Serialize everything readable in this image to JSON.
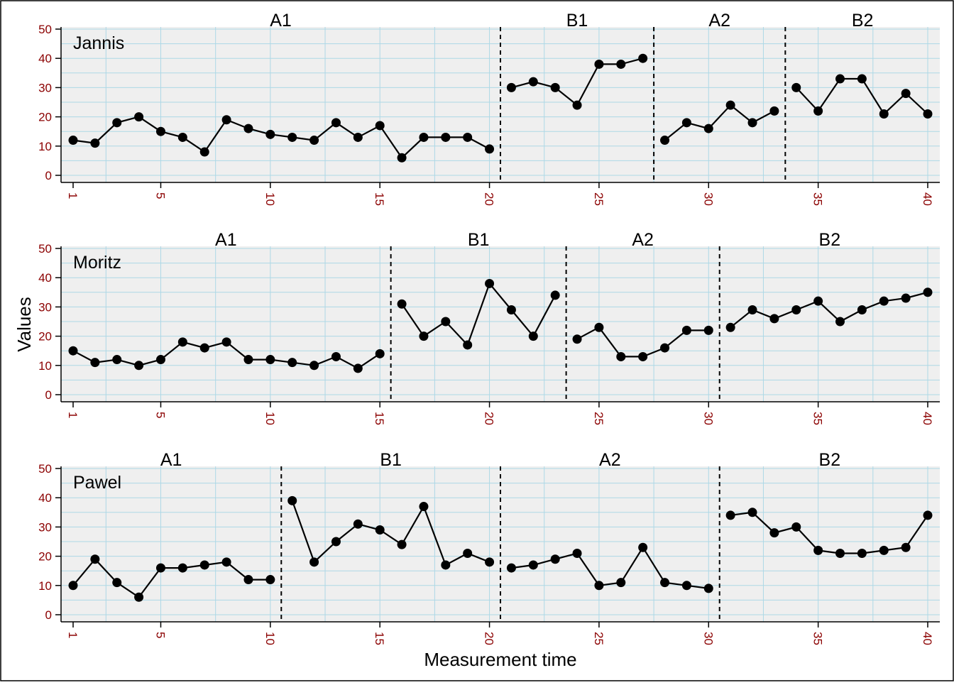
{
  "chart_data": {
    "type": "line",
    "xlabel": "Measurement time",
    "ylabel": "Values",
    "ylim": [
      0,
      50
    ],
    "xlim": [
      1,
      40
    ],
    "yticks": [
      "0",
      "10",
      "20",
      "30",
      "40",
      "50"
    ],
    "xticks": [
      "1",
      "5",
      "10",
      "15",
      "20",
      "25",
      "30",
      "35",
      "40"
    ],
    "grid": true,
    "cases": [
      {
        "name": "Jannis",
        "phases": [
          {
            "label": "A1",
            "x": [
              1,
              2,
              3,
              4,
              5,
              6,
              7,
              8,
              9,
              10,
              11,
              12,
              13,
              14,
              15,
              16,
              17,
              18,
              19,
              20
            ],
            "values": [
              12,
              11,
              18,
              20,
              15,
              13,
              8,
              19,
              16,
              14,
              13,
              12,
              18,
              13,
              17,
              6,
              13,
              13,
              13,
              9
            ]
          },
          {
            "label": "B1",
            "x": [
              21,
              22,
              23,
              24,
              25,
              26,
              27
            ],
            "values": [
              30,
              32,
              30,
              24,
              38,
              38,
              40
            ]
          },
          {
            "label": "A2",
            "x": [
              28,
              29,
              30,
              31,
              32,
              33
            ],
            "values": [
              12,
              18,
              16,
              24,
              18,
              22
            ]
          },
          {
            "label": "B2",
            "x": [
              34,
              35,
              36,
              37,
              38,
              39,
              40
            ],
            "values": [
              30,
              22,
              33,
              33,
              21,
              28,
              21
            ]
          }
        ]
      },
      {
        "name": "Moritz",
        "phases": [
          {
            "label": "A1",
            "x": [
              1,
              2,
              3,
              4,
              5,
              6,
              7,
              8,
              9,
              10,
              11,
              12,
              13,
              14,
              15
            ],
            "values": [
              15,
              11,
              12,
              10,
              12,
              18,
              16,
              18,
              12,
              12,
              11,
              10,
              13,
              9,
              14
            ]
          },
          {
            "label": "B1",
            "x": [
              16,
              17,
              18,
              19,
              20,
              21,
              22,
              23
            ],
            "values": [
              31,
              20,
              25,
              17,
              38,
              29,
              20,
              34
            ]
          },
          {
            "label": "A2",
            "x": [
              24,
              25,
              26,
              27,
              28,
              29,
              30
            ],
            "values": [
              19,
              23,
              13,
              13,
              16,
              22,
              22
            ]
          },
          {
            "label": "B2",
            "x": [
              31,
              32,
              33,
              34,
              35,
              36,
              37,
              38,
              39,
              40
            ],
            "values": [
              23,
              29,
              26,
              29,
              32,
              25,
              29,
              32,
              33,
              35
            ]
          }
        ]
      },
      {
        "name": "Pawel",
        "phases": [
          {
            "label": "A1",
            "x": [
              1,
              2,
              3,
              4,
              5,
              6,
              7,
              8,
              9,
              10
            ],
            "values": [
              10,
              19,
              11,
              6,
              16,
              16,
              17,
              18,
              12,
              12
            ]
          },
          {
            "label": "B1",
            "x": [
              11,
              12,
              13,
              14,
              15,
              16,
              17,
              18,
              19,
              20
            ],
            "values": [
              39,
              18,
              25,
              31,
              29,
              24,
              37,
              17,
              21,
              18
            ]
          },
          {
            "label": "A2",
            "x": [
              21,
              22,
              23,
              24,
              25,
              26,
              27,
              28,
              29,
              30
            ],
            "values": [
              16,
              17,
              19,
              21,
              10,
              11,
              23,
              11,
              10,
              9
            ]
          },
          {
            "label": "B2",
            "x": [
              31,
              32,
              33,
              34,
              35,
              36,
              37,
              38,
              39,
              40
            ],
            "values": [
              34,
              35,
              28,
              30,
              22,
              21,
              21,
              22,
              23,
              34
            ]
          }
        ]
      }
    ],
    "colors": {
      "panel_bg": "#efefef",
      "grid": "#add8e6",
      "line": "#000000",
      "tick_text": "#8b0000"
    }
  }
}
